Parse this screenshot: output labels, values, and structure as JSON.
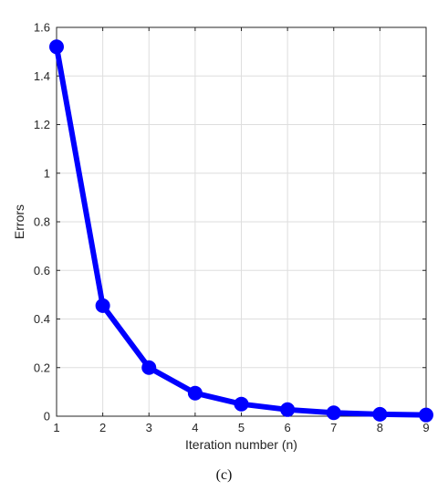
{
  "chart_data": {
    "type": "line",
    "title": "",
    "xlabel": "Iteration number (n)",
    "ylabel": "Errors",
    "xlim": [
      1,
      9
    ],
    "ylim": [
      0,
      1.6
    ],
    "xticks": [
      1,
      2,
      3,
      4,
      5,
      6,
      7,
      8,
      9
    ],
    "xtick_labels": [
      "1",
      "2",
      "3",
      "4",
      "5",
      "6",
      "7",
      "8",
      "9"
    ],
    "yticks": [
      0,
      0.2,
      0.4,
      0.6,
      0.8,
      1.0,
      1.2,
      1.4,
      1.6
    ],
    "ytick_labels": [
      "0",
      "0.2",
      "0.4",
      "0.6",
      "0.8",
      "1",
      "1.2",
      "1.4",
      "1.6"
    ],
    "grid": true,
    "box": true,
    "line_color": "#0000ff",
    "marker": "circle",
    "series": [
      {
        "x": [
          1,
          2,
          3,
          4,
          5,
          6,
          7,
          8,
          9
        ],
        "values": [
          1.52,
          0.455,
          0.2,
          0.095,
          0.05,
          0.027,
          0.014,
          0.008,
          0.005
        ]
      }
    ]
  },
  "caption": "(c)"
}
